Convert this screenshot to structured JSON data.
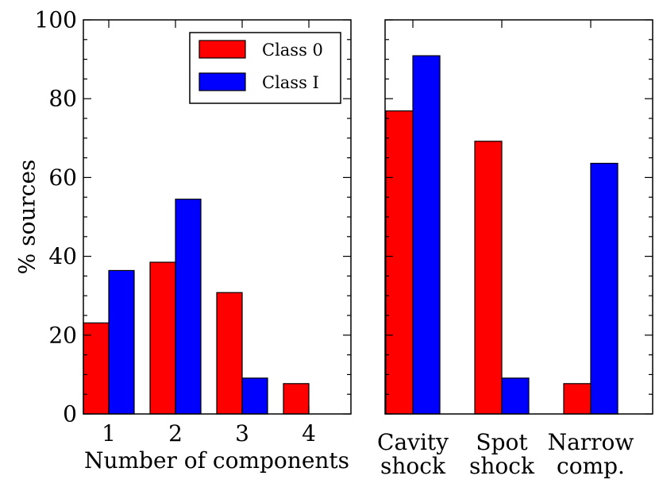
{
  "colors": {
    "class0": "#ff0000",
    "class1": "#0000ff"
  },
  "chart_data": [
    {
      "type": "bar",
      "panel": "left",
      "categories": [
        "1",
        "2",
        "3",
        "4"
      ],
      "series": [
        {
          "name": "Class 0",
          "values": [
            23.1,
            38.5,
            30.8,
            7.7
          ]
        },
        {
          "name": "Class I",
          "values": [
            36.4,
            54.5,
            9.1,
            0
          ]
        }
      ],
      "ylabel": "% sources",
      "xlabel": "Number of components",
      "ylim": [
        0,
        100
      ],
      "yticks": [
        "0",
        "20",
        "40",
        "60",
        "80",
        "100"
      ],
      "legend": {
        "placement": "top-right",
        "entries": [
          "Class 0",
          "Class I"
        ]
      }
    },
    {
      "type": "bar",
      "panel": "right",
      "categories": [
        [
          "Cavity",
          "shock"
        ],
        [
          "Spot",
          "shock"
        ],
        [
          "Narrow",
          "comp."
        ]
      ],
      "series": [
        {
          "name": "Class 0",
          "values": [
            76.9,
            69.2,
            7.7
          ]
        },
        {
          "name": "Class I",
          "values": [
            90.9,
            9.1,
            63.6
          ]
        }
      ],
      "ylim": [
        0,
        100
      ]
    }
  ]
}
